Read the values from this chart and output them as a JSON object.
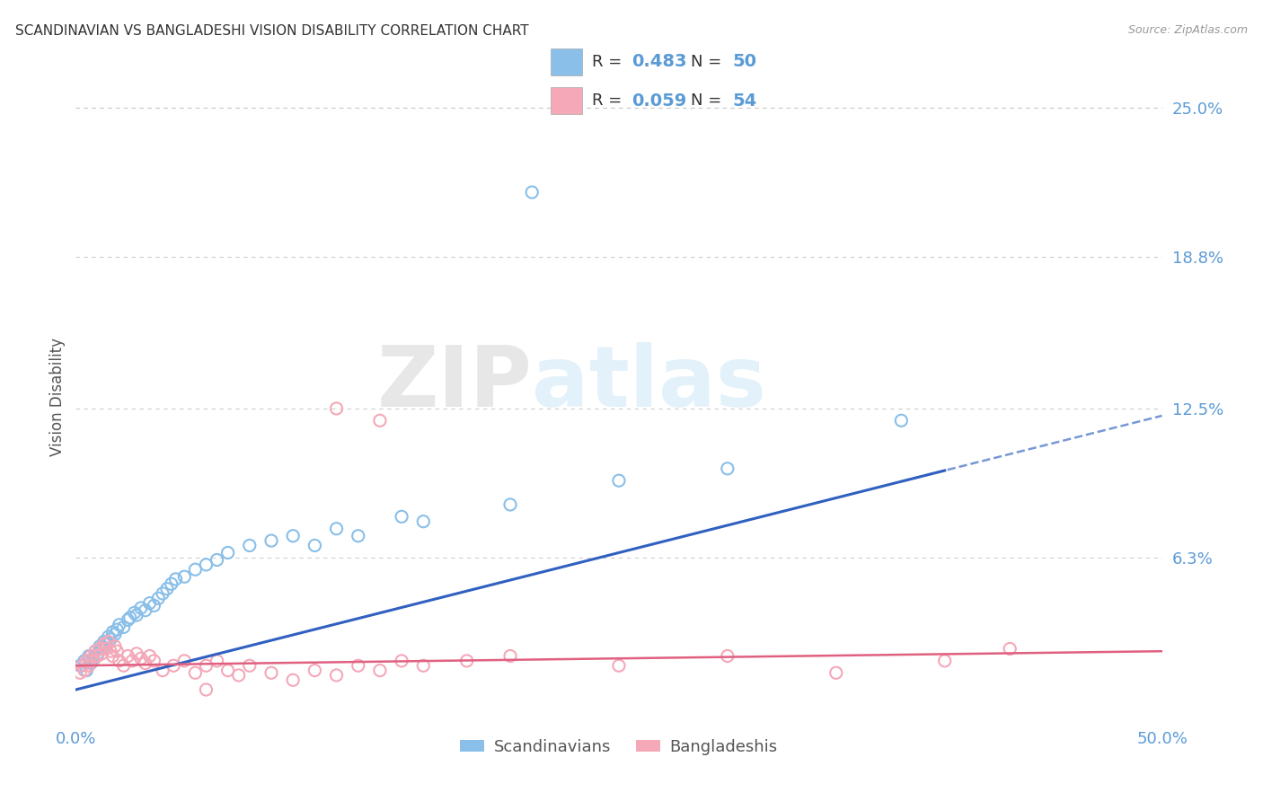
{
  "title": "SCANDINAVIAN VS BANGLADESHI VISION DISABILITY CORRELATION CHART",
  "source": "Source: ZipAtlas.com",
  "ylabel": "Vision Disability",
  "xlim": [
    0.0,
    0.5
  ],
  "ylim": [
    -0.005,
    0.265
  ],
  "ytick_vals": [
    0.063,
    0.125,
    0.188,
    0.25
  ],
  "ytick_labels": [
    "6.3%",
    "12.5%",
    "18.8%",
    "25.0%"
  ],
  "xtick_vals": [
    0.0,
    0.5
  ],
  "xtick_labels": [
    "0.0%",
    "50.0%"
  ],
  "scandinavian_color": "#89bfe8",
  "bangladeshi_color": "#f4a8b8",
  "trend_blue": "#3060c0",
  "trend_pink": "#e06080",
  "background": "#ffffff",
  "grid_color": "#cccccc",
  "legend_R_blue": "0.483",
  "legend_N_blue": "50",
  "legend_R_pink": "0.059",
  "legend_N_pink": "54",
  "label_scandinavians": "Scandinavians",
  "label_bangladeshis": "Bangladeshis",
  "tick_color": "#5b9bd5",
  "watermark_color": "#d0e8f8",
  "scandinavian_points": [
    [
      0.002,
      0.018
    ],
    [
      0.004,
      0.02
    ],
    [
      0.005,
      0.016
    ],
    [
      0.006,
      0.022
    ],
    [
      0.007,
      0.019
    ],
    [
      0.008,
      0.021
    ],
    [
      0.009,
      0.024
    ],
    [
      0.01,
      0.023
    ],
    [
      0.011,
      0.026
    ],
    [
      0.012,
      0.025
    ],
    [
      0.013,
      0.028
    ],
    [
      0.014,
      0.027
    ],
    [
      0.015,
      0.03
    ],
    [
      0.016,
      0.029
    ],
    [
      0.017,
      0.032
    ],
    [
      0.018,
      0.031
    ],
    [
      0.019,
      0.033
    ],
    [
      0.02,
      0.035
    ],
    [
      0.022,
      0.034
    ],
    [
      0.024,
      0.037
    ],
    [
      0.025,
      0.038
    ],
    [
      0.027,
      0.04
    ],
    [
      0.028,
      0.039
    ],
    [
      0.03,
      0.042
    ],
    [
      0.032,
      0.041
    ],
    [
      0.034,
      0.044
    ],
    [
      0.036,
      0.043
    ],
    [
      0.038,
      0.046
    ],
    [
      0.04,
      0.048
    ],
    [
      0.042,
      0.05
    ],
    [
      0.044,
      0.052
    ],
    [
      0.046,
      0.054
    ],
    [
      0.05,
      0.055
    ],
    [
      0.055,
      0.058
    ],
    [
      0.06,
      0.06
    ],
    [
      0.065,
      0.062
    ],
    [
      0.07,
      0.065
    ],
    [
      0.08,
      0.068
    ],
    [
      0.09,
      0.07
    ],
    [
      0.1,
      0.072
    ],
    [
      0.11,
      0.068
    ],
    [
      0.12,
      0.075
    ],
    [
      0.13,
      0.072
    ],
    [
      0.15,
      0.08
    ],
    [
      0.16,
      0.078
    ],
    [
      0.2,
      0.085
    ],
    [
      0.25,
      0.095
    ],
    [
      0.3,
      0.1
    ],
    [
      0.21,
      0.215
    ],
    [
      0.38,
      0.12
    ]
  ],
  "bangladeshi_points": [
    [
      0.002,
      0.015
    ],
    [
      0.003,
      0.018
    ],
    [
      0.004,
      0.016
    ],
    [
      0.005,
      0.02
    ],
    [
      0.006,
      0.018
    ],
    [
      0.007,
      0.022
    ],
    [
      0.008,
      0.02
    ],
    [
      0.009,
      0.024
    ],
    [
      0.01,
      0.022
    ],
    [
      0.011,
      0.025
    ],
    [
      0.012,
      0.023
    ],
    [
      0.013,
      0.027
    ],
    [
      0.014,
      0.025
    ],
    [
      0.015,
      0.028
    ],
    [
      0.016,
      0.024
    ],
    [
      0.017,
      0.022
    ],
    [
      0.018,
      0.026
    ],
    [
      0.019,
      0.024
    ],
    [
      0.02,
      0.02
    ],
    [
      0.022,
      0.018
    ],
    [
      0.024,
      0.022
    ],
    [
      0.026,
      0.02
    ],
    [
      0.028,
      0.023
    ],
    [
      0.03,
      0.021
    ],
    [
      0.032,
      0.019
    ],
    [
      0.034,
      0.022
    ],
    [
      0.036,
      0.02
    ],
    [
      0.04,
      0.016
    ],
    [
      0.045,
      0.018
    ],
    [
      0.05,
      0.02
    ],
    [
      0.055,
      0.015
    ],
    [
      0.06,
      0.018
    ],
    [
      0.065,
      0.02
    ],
    [
      0.07,
      0.016
    ],
    [
      0.075,
      0.014
    ],
    [
      0.08,
      0.018
    ],
    [
      0.09,
      0.015
    ],
    [
      0.1,
      0.012
    ],
    [
      0.11,
      0.016
    ],
    [
      0.12,
      0.014
    ],
    [
      0.13,
      0.018
    ],
    [
      0.14,
      0.016
    ],
    [
      0.15,
      0.02
    ],
    [
      0.16,
      0.018
    ],
    [
      0.18,
      0.02
    ],
    [
      0.2,
      0.022
    ],
    [
      0.25,
      0.018
    ],
    [
      0.3,
      0.022
    ],
    [
      0.35,
      0.015
    ],
    [
      0.4,
      0.02
    ],
    [
      0.43,
      0.025
    ],
    [
      0.12,
      0.125
    ],
    [
      0.14,
      0.12
    ],
    [
      0.06,
      0.008
    ]
  ]
}
